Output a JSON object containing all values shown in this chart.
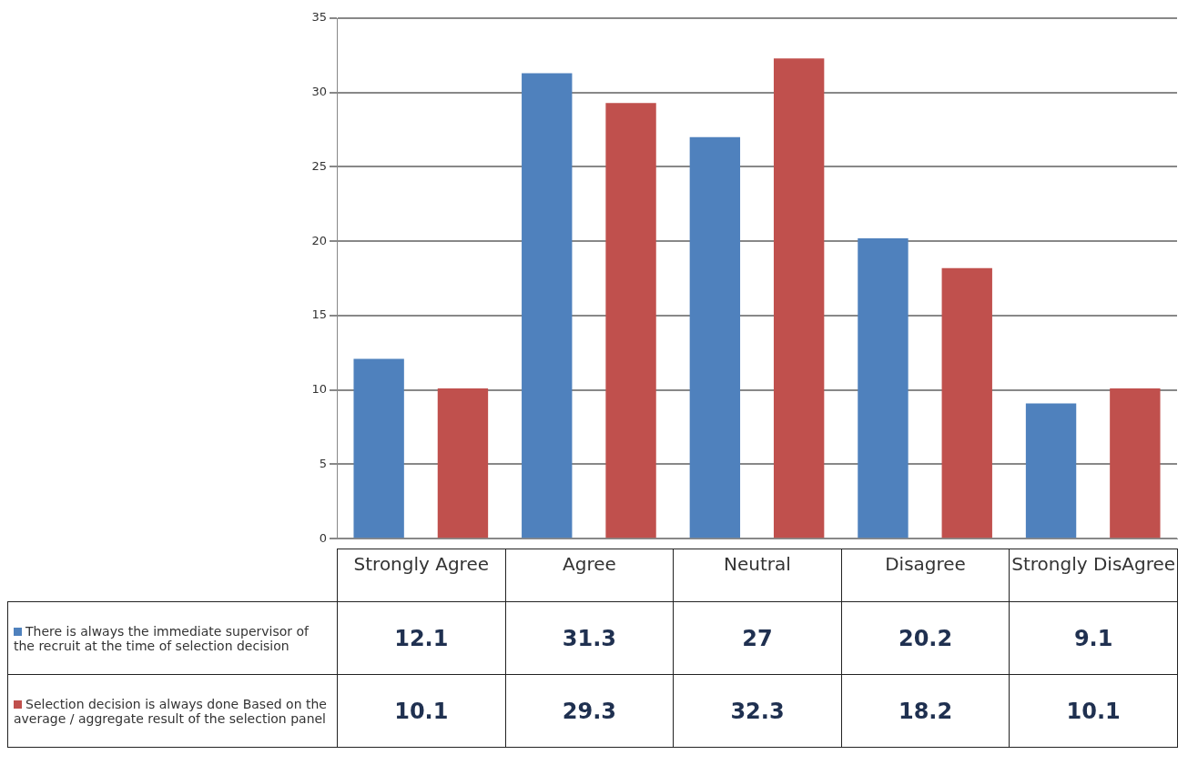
{
  "chart_data": {
    "type": "bar",
    "categories": [
      "Strongly Agree",
      "Agree",
      "Neutral",
      "Disagree",
      "Strongly DisAgree"
    ],
    "series": [
      {
        "name": "There is always the immediate supervisor of the recruit at the time of selection decision",
        "color": "#4f81bd",
        "values": [
          12.1,
          31.3,
          27,
          20.2,
          9.1
        ]
      },
      {
        "name": "Selection decision is always done Based on the average / aggregate result of the selection panel",
        "color": "#c0504d",
        "values": [
          10.1,
          29.3,
          32.3,
          18.2,
          10.1
        ]
      }
    ],
    "ylim": [
      0,
      35
    ],
    "yticks": [
      0,
      5,
      10,
      15,
      20,
      25,
      30,
      35
    ],
    "grid": "y",
    "data_labels": true,
    "legend": "bottom left"
  }
}
